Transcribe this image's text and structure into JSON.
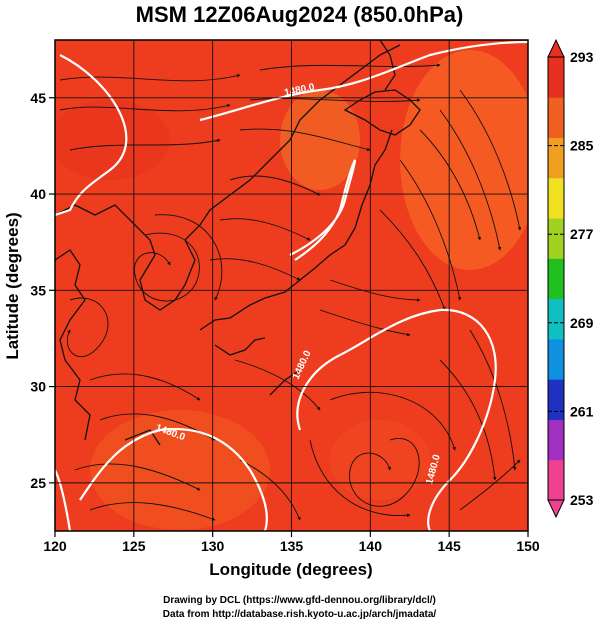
{
  "title": "MSM 12Z06Aug2024 (850.0hPa)",
  "xlabel": "Longitude (degrees)",
  "ylabel": "Latitude  (degrees)",
  "x_ticks": [
    "120",
    "125",
    "130",
    "135",
    "140",
    "145",
    "150"
  ],
  "y_ticks": [
    "25",
    "30",
    "35",
    "40",
    "45"
  ],
  "colorbar": {
    "ticks": [
      "293",
      "285",
      "277",
      "269",
      "261",
      "253"
    ],
    "min": 253,
    "max": 293,
    "colors": [
      "#f04090",
      "#a030c0",
      "#2030c0",
      "#1090e0",
      "#10c0c0",
      "#20c020",
      "#a0d020",
      "#f0e020",
      "#f0a020",
      "#f06020",
      "#e83020"
    ]
  },
  "contour_labels": [
    "1480.0",
    "1480.0",
    "1480.0",
    "1480.0"
  ],
  "credits": {
    "line1": "Drawing by DCL (https://www.gfd-dennou.org/library/dcl/)",
    "line2": "Data from http://database.rish.kyoto-u.ac.jp/arch/jmadata/"
  },
  "chart_data": {
    "type": "map",
    "map_extent": {
      "lon": [
        120,
        150
      ],
      "lat": [
        22.5,
        48
      ]
    },
    "field": "temperature (K) at 850.0hPa with wind streamlines and height contours",
    "colorbar_range": [
      253,
      293
    ]
  }
}
